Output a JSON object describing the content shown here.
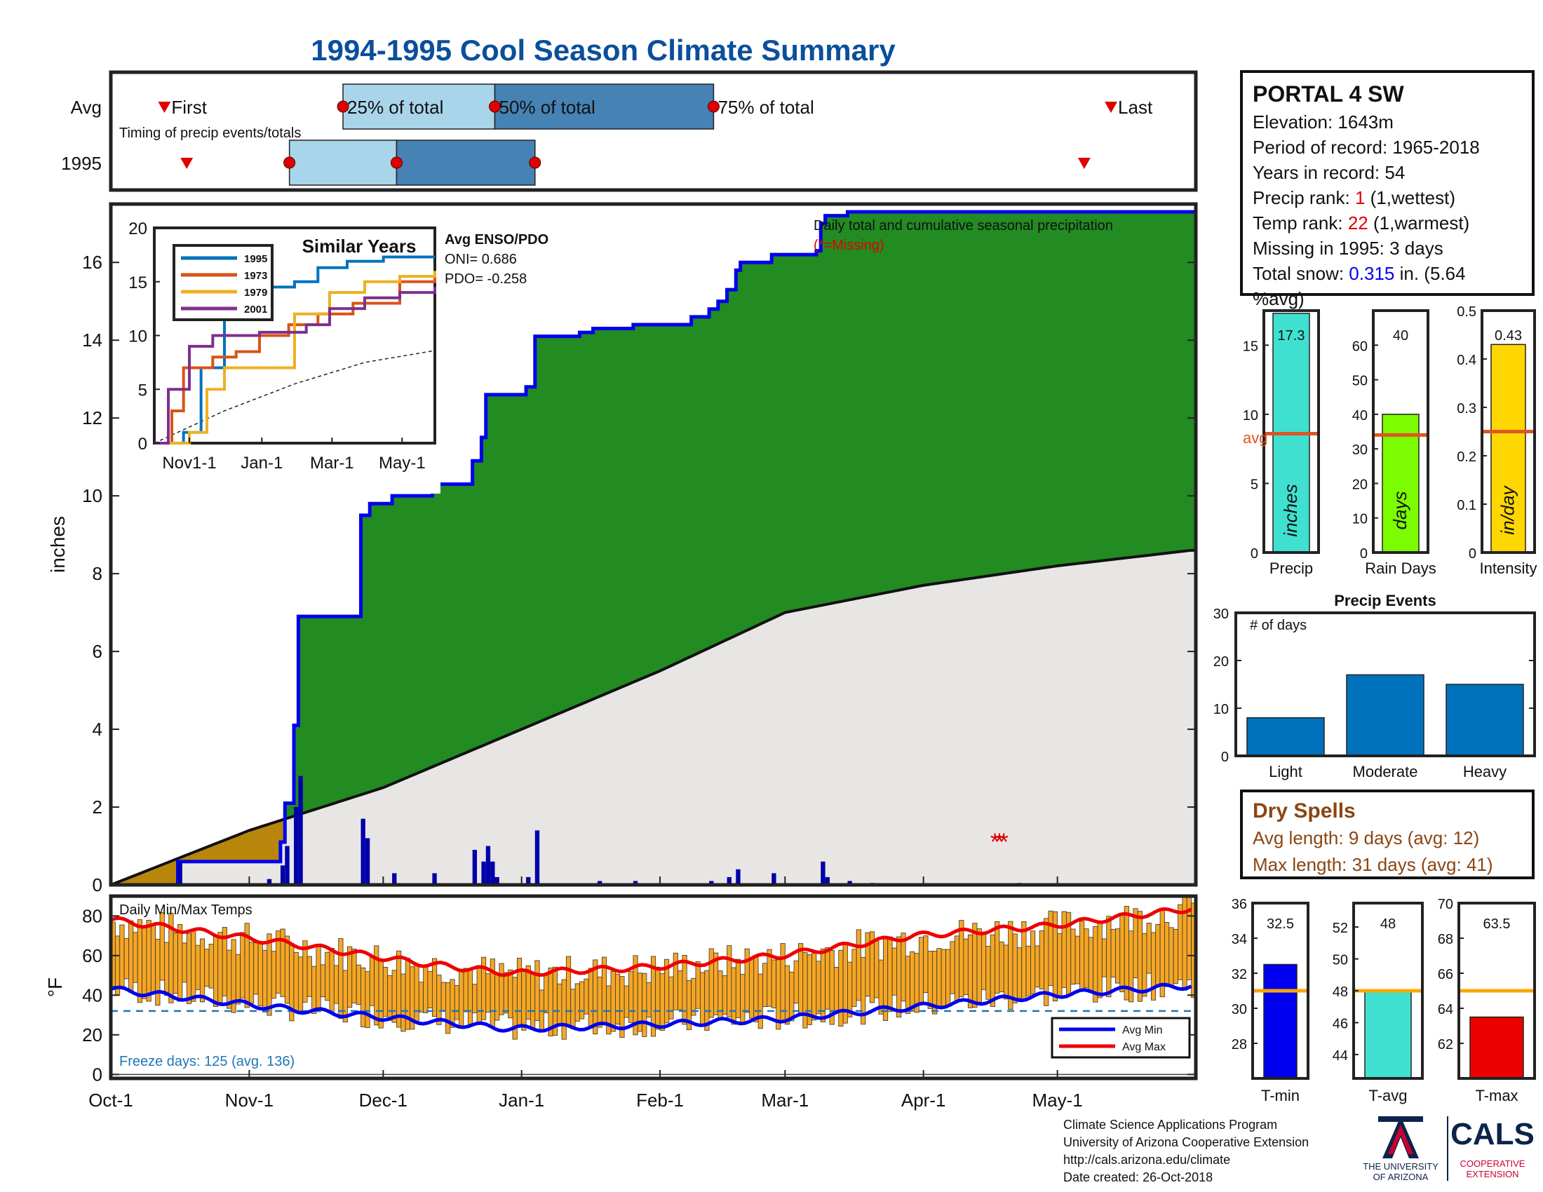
{
  "title": "1994-1995 Cool Season Climate Summary",
  "colors": {
    "title": "#0b4f9c",
    "precip_fill": "#228b22",
    "avg_fill": "#e8e6e5",
    "below_avg_fill": "#b8860b",
    "cum_line": "#0000ee",
    "daily_bar": "#0000aa",
    "temp_bar": "#f5a623",
    "avg_min": "#0000ee",
    "avg_max": "#ee0000",
    "freeze_line": "#1f77b4",
    "light_blue": "#a8d5ea",
    "steel_blue": "#4682b4",
    "marker_red": "#e00000",
    "avg_line_orange": "#dd5522",
    "tavg_line": "#ffa500"
  },
  "station": {
    "name": "PORTAL 4 SW",
    "elevation": "Elevation: 1643m",
    "period": "Period of record: 1965-2018",
    "years": "Years in record: 54",
    "precip_rank_label": "Precip rank: ",
    "precip_rank_value": "1",
    "precip_rank_note": " (1,wettest)",
    "temp_rank_label": "Temp rank: ",
    "temp_rank_value": "22",
    "temp_rank_note": " (1,warmest)",
    "missing": "Missing in 1995: 3 days",
    "snow_label": "Total snow: ",
    "snow_value": "0.315",
    "snow_note": " in. (5.64 %avg)"
  },
  "dry_spells": {
    "title": "Dry Spells",
    "avg_length": "Avg length: 9 days (avg: 12)",
    "max_length": "Max length: 31 days (avg: 41)"
  },
  "footer": {
    "line1": "Climate Science Applications Program",
    "line2": "University of Arizona Cooperative Extension",
    "line3": "http://cals.arizona.edu/climate",
    "line4": " Date created: 26-Oct-2018"
  },
  "logos": {
    "ua_line1": "THE UNIVERSITY",
    "ua_line2": "OF ARIZONA",
    "cals_main": "CALS",
    "cals_line1": "COOPERATIVE",
    "cals_line2": "EXTENSION"
  },
  "chart_data": [
    {
      "name": "timing",
      "type": "timeline",
      "rows": [
        "Avg",
        "1995"
      ],
      "caption": "Timing of precip events/totals",
      "labels": {
        "first": "First",
        "p25": "25% of total",
        "p50": "50% of total",
        "p75": "75% of total",
        "last": "Last"
      },
      "avg": {
        "first": "1994-10-13",
        "p25": "1994-11-22",
        "p50": "1994-12-26",
        "p75": "1995-02-13",
        "last": "1995-05-13"
      },
      "y1995": {
        "first": "1994-10-18",
        "p25": "1994-11-10",
        "p50": "1994-12-04",
        "p75": "1995-01-04",
        "last": "1995-05-07"
      }
    },
    {
      "name": "cumulative_precip",
      "type": "area",
      "title": "Daily total and cumulative seasonal precipitation",
      "missing_note": "(*=Missing)",
      "ylabel": "inches",
      "ylim": [
        0,
        17.5
      ],
      "yticks": [
        0,
        2,
        4,
        6,
        8,
        10,
        12,
        14,
        16
      ],
      "xticks": [
        "Oct-1",
        "Nov-1",
        "Dec-1",
        "Jan-1",
        "Feb-1",
        "Mar-1",
        "Apr-1",
        "May-1"
      ],
      "x_start": "1994-10-01",
      "x_end": "1995-05-31",
      "cumulative_1995": [
        [
          "1994-10-01",
          0
        ],
        [
          "1994-10-16",
          0.6
        ],
        [
          "1994-11-08",
          1.1
        ],
        [
          "1994-11-09",
          2.1
        ],
        [
          "1994-11-11",
          4.1
        ],
        [
          "1994-11-12",
          6.9
        ],
        [
          "1994-11-25",
          6.9
        ],
        [
          "1994-11-26",
          9.5
        ],
        [
          "1994-11-28",
          9.8
        ],
        [
          "1994-12-03",
          10.0
        ],
        [
          "1994-12-12",
          10.3
        ],
        [
          "1994-12-21",
          10.9
        ],
        [
          "1994-12-23",
          11.5
        ],
        [
          "1994-12-24",
          12.6
        ],
        [
          "1995-01-02",
          12.8
        ],
        [
          "1995-01-04",
          14.1
        ],
        [
          "1995-01-14",
          14.2
        ],
        [
          "1995-01-17",
          14.3
        ],
        [
          "1995-01-26",
          14.4
        ],
        [
          "1995-02-08",
          14.6
        ],
        [
          "1995-02-12",
          14.8
        ],
        [
          "1995-02-14",
          15.0
        ],
        [
          "1995-02-16",
          15.3
        ],
        [
          "1995-02-18",
          15.8
        ],
        [
          "1995-02-19",
          16.0
        ],
        [
          "1995-02-26",
          16.2
        ],
        [
          "1995-03-08",
          16.3
        ],
        [
          "1995-03-09",
          17.0
        ],
        [
          "1995-03-10",
          17.2
        ],
        [
          "1995-03-15",
          17.3
        ],
        [
          "1995-05-31",
          17.3
        ]
      ],
      "avg_cumulative": [
        [
          "1994-10-01",
          0
        ],
        [
          "1994-11-01",
          1.4
        ],
        [
          "1994-12-01",
          2.5
        ],
        [
          "1995-01-01",
          4.0
        ],
        [
          "1995-02-01",
          5.5
        ],
        [
          "1995-03-01",
          7.0
        ],
        [
          "1995-04-01",
          7.7
        ],
        [
          "1995-05-01",
          8.2
        ],
        [
          "1995-05-31",
          8.6
        ]
      ],
      "daily_1995": [
        [
          "1994-10-16",
          0.6
        ],
        [
          "1994-11-05",
          0.15
        ],
        [
          "1994-11-08",
          0.5
        ],
        [
          "1994-11-09",
          1.0
        ],
        [
          "1994-11-11",
          2.0
        ],
        [
          "1994-11-12",
          2.8
        ],
        [
          "1994-11-26",
          1.7
        ],
        [
          "1994-11-27",
          1.2
        ],
        [
          "1994-12-03",
          0.3
        ],
        [
          "1994-12-12",
          0.3
        ],
        [
          "1994-12-21",
          0.9
        ],
        [
          "1994-12-23",
          0.6
        ],
        [
          "1994-12-24",
          1.0
        ],
        [
          "1994-12-25",
          0.6
        ],
        [
          "1994-12-26",
          0.2
        ],
        [
          "1995-01-02",
          0.2
        ],
        [
          "1995-01-04",
          1.4
        ],
        [
          "1995-01-18",
          0.1
        ],
        [
          "1995-01-26",
          0.1
        ],
        [
          "1995-02-12",
          0.1
        ],
        [
          "1995-02-16",
          0.2
        ],
        [
          "1995-02-18",
          0.4
        ],
        [
          "1995-02-26",
          0.3
        ],
        [
          "1995-03-09",
          0.6
        ],
        [
          "1995-03-10",
          0.2
        ],
        [
          "1995-03-15",
          0.1
        ],
        [
          "1995-03-20",
          0.05
        ],
        [
          "1995-04-22",
          0.05
        ]
      ],
      "missing_dates": [
        "1995-04-17",
        "1995-04-18",
        "1995-04-19"
      ]
    },
    {
      "name": "similar_years",
      "type": "line",
      "title": "Similar Years",
      "ylim": [
        0,
        20
      ],
      "yticks": [
        0,
        5,
        10,
        15,
        20
      ],
      "xticks": [
        "Nov1-1",
        "Jan-1",
        "Mar-1",
        "May-1"
      ],
      "series": [
        {
          "name": "1995",
          "color": "#0072bd",
          "points": [
            [
              0,
              0
            ],
            [
              25,
              1
            ],
            [
              40,
              7
            ],
            [
              60,
              12
            ],
            [
              75,
              14.1
            ],
            [
              100,
              14.5
            ],
            [
              120,
              15
            ],
            [
              140,
              16.3
            ],
            [
              165,
              16.9
            ],
            [
              196,
              17.3
            ],
            [
              240,
              17.3
            ]
          ]
        },
        {
          "name": "1973",
          "color": "#d95319",
          "points": [
            [
              0,
              0
            ],
            [
              15,
              3
            ],
            [
              25,
              7
            ],
            [
              50,
              8
            ],
            [
              70,
              8.5
            ],
            [
              90,
              10
            ],
            [
              115,
              11
            ],
            [
              140,
              12
            ],
            [
              170,
              13
            ],
            [
              210,
              15
            ],
            [
              240,
              15.5
            ]
          ]
        },
        {
          "name": "1979",
          "color": "#edb120",
          "points": [
            [
              0,
              0
            ],
            [
              30,
              1
            ],
            [
              45,
              5
            ],
            [
              60,
              7
            ],
            [
              95,
              7
            ],
            [
              120,
              12
            ],
            [
              150,
              14
            ],
            [
              180,
              15
            ],
            [
              210,
              15.5
            ],
            [
              240,
              16
            ]
          ]
        },
        {
          "name": "2001",
          "color": "#7e2f8e",
          "points": [
            [
              0,
              0
            ],
            [
              12,
              5
            ],
            [
              30,
              9
            ],
            [
              50,
              10
            ],
            [
              90,
              10.3
            ],
            [
              130,
              11
            ],
            [
              150,
              12.5
            ],
            [
              180,
              13.5
            ],
            [
              210,
              14
            ],
            [
              240,
              14.5
            ]
          ]
        }
      ],
      "average_points": [
        [
          0,
          0
        ],
        [
          60,
          3
        ],
        [
          120,
          5.5
        ],
        [
          180,
          7.5
        ],
        [
          240,
          8.6
        ]
      ],
      "enso_title": "Avg ENSO/PDO",
      "oni": "ONI= 0.686",
      "pdo": "PDO= -0.258"
    },
    {
      "name": "season_bars",
      "type": "bar",
      "panels": [
        {
          "label": "Precip",
          "unit": "inches",
          "value": 17.3,
          "value_label": "17.3",
          "avg": 8.6,
          "avg_label": "avg",
          "ylim": [
            0,
            17.5
          ],
          "yticks": [
            0,
            5,
            10,
            15
          ],
          "color": "#40e0d0"
        },
        {
          "label": "Rain Days",
          "unit": "days",
          "value": 40,
          "value_label": "40",
          "avg": 34,
          "ylim": [
            0,
            70
          ],
          "yticks": [
            0,
            10,
            20,
            30,
            40,
            50,
            60
          ],
          "color": "#7cfc00"
        },
        {
          "label": "Intensity",
          "unit": "in/day",
          "value": 0.43,
          "value_label": "0.43",
          "avg": 0.25,
          "ylim": [
            0,
            0.5
          ],
          "yticks": [
            "0",
            "0.1",
            "0.2",
            "0.3",
            "0.4",
            "0.5"
          ],
          "color": "#ffd700"
        }
      ]
    },
    {
      "name": "precip_events",
      "type": "bar",
      "title": "Precip Events",
      "ylabel": "# of days",
      "categories": [
        "Light",
        "Moderate",
        "Heavy"
      ],
      "values": [
        8,
        17,
        15
      ],
      "ylim": [
        0,
        30
      ],
      "yticks": [
        0,
        10,
        20,
        30
      ],
      "color": "#0072bd"
    },
    {
      "name": "daily_temps",
      "type": "bar",
      "title": "Daily Min/Max Temps",
      "ylabel": "°F",
      "ylim": [
        -2,
        90
      ],
      "yticks": [
        0,
        20,
        40,
        60,
        80
      ],
      "freeze_line": 32,
      "freeze_text": "Freeze days: 125 (avg. 136)",
      "legend": [
        "Avg Min",
        "Avg Max"
      ],
      "avg_max_points": [
        [
          0,
          78
        ],
        [
          40,
          66
        ],
        [
          70,
          56
        ],
        [
          90,
          51
        ],
        [
          120,
          54
        ],
        [
          150,
          60
        ],
        [
          180,
          70
        ],
        [
          210,
          75
        ],
        [
          243,
          84
        ]
      ],
      "avg_min_points": [
        [
          0,
          43
        ],
        [
          40,
          33
        ],
        [
          70,
          27
        ],
        [
          90,
          23
        ],
        [
          120,
          25
        ],
        [
          150,
          28
        ],
        [
          180,
          34
        ],
        [
          210,
          40
        ],
        [
          243,
          45
        ]
      ]
    },
    {
      "name": "temp_summary",
      "type": "bar",
      "panels": [
        {
          "label": "T-min",
          "value": 32.5,
          "value_label": "32.5",
          "avg": 31,
          "ylim": [
            26,
            36
          ],
          "yticks": [
            28,
            30,
            32,
            34,
            36
          ],
          "color": "#0000ee"
        },
        {
          "label": "T-avg",
          "value": 48,
          "value_label": "48",
          "avg": 48,
          "ylim": [
            42.5,
            53.5
          ],
          "yticks": [
            44,
            46,
            48,
            50,
            52
          ],
          "color": "#40e0d0"
        },
        {
          "label": "T-max",
          "value": 63.5,
          "value_label": "63.5",
          "avg": 65,
          "ylim": [
            60,
            70
          ],
          "yticks": [
            62,
            64,
            66,
            68,
            70
          ],
          "color": "#ee0000"
        }
      ]
    }
  ]
}
